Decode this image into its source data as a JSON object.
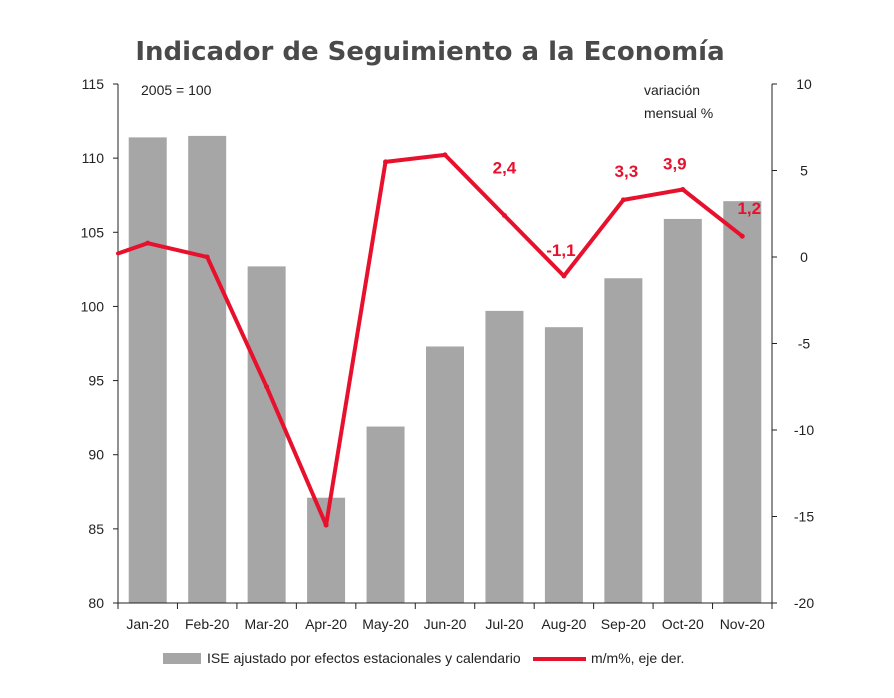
{
  "chart_data": {
    "type": "bar",
    "title": "Indicador de Seguimiento a la Economía",
    "categories": [
      "Jan-20",
      "Feb-20",
      "Mar-20",
      "Apr-20",
      "May-20",
      "Jun-20",
      "Jul-20",
      "Aug-20",
      "Sep-20",
      "Oct-20",
      "Nov-20"
    ],
    "left_axis": {
      "min": 80,
      "max": 115,
      "ticks": [
        "80",
        "85",
        "90",
        "95",
        "100",
        "105",
        "110",
        "115"
      ],
      "note": "2005 = 100"
    },
    "right_axis": {
      "min": -20,
      "max": 10,
      "ticks": [
        "-20",
        "-15",
        "-10",
        "-5",
        "0",
        "5",
        "10"
      ],
      "note_line1": "variación",
      "note_line2": "mensual %"
    },
    "series": [
      {
        "name": "ISE ajustado por efectos estacionales y calendario",
        "type": "bar",
        "axis": "left",
        "color": "#a6a6a6",
        "values": [
          111.4,
          111.5,
          102.7,
          87.1,
          91.9,
          97.3,
          99.7,
          98.6,
          101.9,
          105.9,
          107.1
        ]
      },
      {
        "name": "m/m%, eje der.",
        "type": "line",
        "axis": "right",
        "color": "#e8112d",
        "start_value": 0.2,
        "values": [
          0.8,
          0.0,
          -7.5,
          -15.5,
          5.5,
          5.9,
          2.4,
          -1.1,
          3.3,
          3.9,
          1.2
        ],
        "labels": [
          "",
          "",
          "",
          "",
          "",
          "",
          "2,4",
          "-1,1",
          "3,3",
          "3,9",
          "1,2"
        ]
      }
    ],
    "grid": false,
    "legend": "bottom"
  }
}
